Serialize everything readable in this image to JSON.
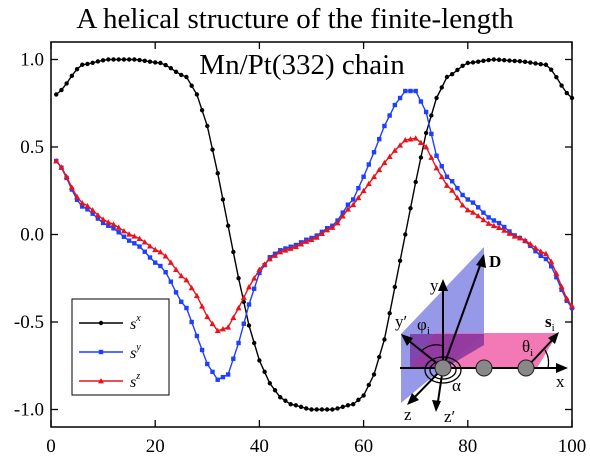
{
  "chart_data": {
    "type": "line",
    "title_lines": [
      "A helical structure of the finite-length",
      "Mn/Pt(332) chain"
    ],
    "xlabel": "",
    "ylabel": "",
    "xlim": [
      0,
      100
    ],
    "ylim": [
      -1.1,
      1.1
    ],
    "xticks": [
      0,
      20,
      40,
      60,
      80,
      100
    ],
    "yticks": [
      -1.0,
      -0.5,
      0.0,
      0.5,
      1.0
    ],
    "ytick_labels": [
      "-1.0",
      "-0.5",
      "0.0",
      "0.5",
      "1.0"
    ],
    "grid": false,
    "legend_position": "bottom-left",
    "x": [
      1,
      6,
      11,
      16,
      21,
      26,
      28,
      30,
      32,
      34,
      36,
      38,
      40,
      42,
      44,
      46,
      50,
      54,
      58,
      60,
      62,
      64,
      66,
      68,
      70,
      72,
      74,
      76,
      80,
      85,
      90,
      95,
      100
    ],
    "series": [
      {
        "name": "s^x",
        "legend_base": "s",
        "legend_sup": "x",
        "color": "#000000",
        "marker": "circle",
        "values": [
          0.8,
          0.97,
          1.0,
          1.0,
          0.98,
          0.9,
          0.8,
          0.62,
          0.35,
          0.05,
          -0.25,
          -0.52,
          -0.72,
          -0.85,
          -0.93,
          -0.97,
          -1.0,
          -1.0,
          -0.97,
          -0.92,
          -0.8,
          -0.6,
          -0.3,
          0.0,
          0.3,
          0.58,
          0.78,
          0.9,
          0.98,
          1.0,
          0.99,
          0.97,
          0.78
        ]
      },
      {
        "name": "s^y",
        "legend_base": "s",
        "legend_sup": "y",
        "color": "#1f3fff",
        "marker": "square",
        "values": [
          0.42,
          0.16,
          0.05,
          -0.05,
          -0.18,
          -0.42,
          -0.58,
          -0.74,
          -0.83,
          -0.8,
          -0.62,
          -0.4,
          -0.22,
          -0.13,
          -0.09,
          -0.07,
          -0.02,
          0.05,
          0.2,
          0.33,
          0.47,
          0.62,
          0.74,
          0.82,
          0.82,
          0.7,
          0.45,
          0.33,
          0.2,
          0.08,
          -0.02,
          -0.14,
          -0.42
        ]
      },
      {
        "name": "s^z",
        "legend_base": "s",
        "legend_sup": "z",
        "color": "#e8141b",
        "marker": "triangle",
        "values": [
          0.42,
          0.18,
          0.07,
          -0.01,
          -0.1,
          -0.26,
          -0.35,
          -0.47,
          -0.55,
          -0.53,
          -0.42,
          -0.3,
          -0.2,
          -0.14,
          -0.1,
          -0.08,
          -0.03,
          0.04,
          0.17,
          0.25,
          0.33,
          0.41,
          0.48,
          0.54,
          0.55,
          0.5,
          0.38,
          0.28,
          0.14,
          0.05,
          -0.02,
          -0.11,
          -0.41
        ]
      }
    ]
  },
  "inset": {
    "labels": {
      "D": "D",
      "y": "y",
      "y_prime": "y′",
      "phi": "φ",
      "phi_sub": "i",
      "s": "s",
      "s_sub": "i",
      "theta": "θ",
      "theta_sub": "i",
      "x": "x",
      "z": "z",
      "z_prime": "z′",
      "alpha": "α"
    },
    "colors": {
      "blue_plane": "#8b8de6",
      "pink_plane": "#f061a8",
      "purple_overlap": "#7a2b9a",
      "atom": "#808080"
    }
  }
}
